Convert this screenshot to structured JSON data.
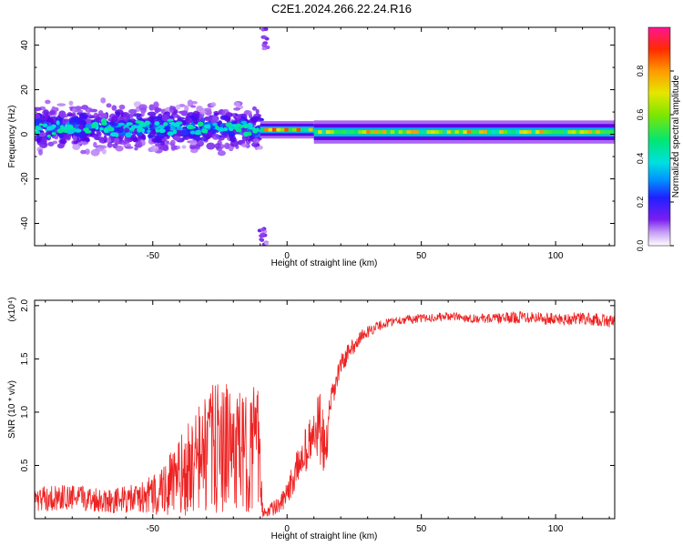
{
  "title": "C2E1.2024.266.22.24.R16",
  "chart_data": [
    {
      "type": "heatmap",
      "xlabel": "Height of straight line (km)",
      "ylabel": "Frequency (Hz)",
      "xlim": [
        -94,
        122
      ],
      "ylim": [
        -50,
        48
      ],
      "xticks": [
        -50,
        0,
        50,
        100
      ],
      "yticks": [
        -40,
        -20,
        0,
        20,
        40
      ],
      "colorbar": {
        "label": "Normalized spectral amplitude",
        "range": [
          0.0,
          1.0
        ],
        "ticks": [
          "0.0",
          "0.2",
          "0.4",
          "0.6",
          "0.8"
        ],
        "colormap": [
          "#ffffff",
          "#9f52f1",
          "#5a00e6",
          "#2020ff",
          "#0090ff",
          "#00e0e0",
          "#00e676",
          "#7fe600",
          "#e6e600",
          "#ff9a00",
          "#ff2a00",
          "#ff1493"
        ]
      },
      "bands": [
        {
          "x_range": [
            -94,
            -10
          ],
          "center_hz": 3,
          "spread_hz": 12,
          "peak_amplitude": 0.4,
          "texture": "scattered"
        },
        {
          "x_range": [
            -10,
            10
          ],
          "center_hz": 2,
          "spread_hz": 3,
          "peak_amplitude": 0.9,
          "texture": "narrow"
        },
        {
          "x_range": [
            10,
            122
          ],
          "center_hz": 1,
          "spread_hz": 4,
          "peak_amplitude": 0.85,
          "texture": "narrow"
        }
      ],
      "artifacts": [
        {
          "x": -8,
          "y_range": [
            38,
            48
          ]
        },
        {
          "x": -9,
          "y_range": [
            -50,
            -42
          ]
        }
      ]
    },
    {
      "type": "line",
      "xlabel": "Height of straight line (km)",
      "ylabel": "SNR (10 * v/v)",
      "ylabel_multiplier": "(x10⁴)",
      "xlim": [
        -94,
        122
      ],
      "ylim": [
        0,
        2.05
      ],
      "xticks": [
        -50,
        0,
        50,
        100
      ],
      "yticks": [
        "0.5",
        "1.0",
        "1.5",
        "2.0"
      ],
      "series": [
        {
          "color": "#ee2222",
          "x": [
            -94,
            -85,
            -75,
            -65,
            -55,
            -50,
            -45,
            -40,
            -35,
            -30,
            -25,
            -20,
            -15,
            -11,
            -9,
            -7,
            -3,
            0,
            3,
            6,
            9,
            12,
            14,
            17,
            20,
            24,
            28,
            33,
            40,
            50,
            60,
            70,
            80,
            90,
            100,
            110,
            122
          ],
          "y": [
            0.18,
            0.2,
            0.19,
            0.17,
            0.19,
            0.22,
            0.3,
            0.38,
            0.5,
            0.62,
            0.68,
            0.65,
            0.6,
            0.72,
            0.06,
            0.08,
            0.12,
            0.22,
            0.42,
            0.62,
            0.72,
            0.88,
            0.6,
            1.15,
            1.45,
            1.6,
            1.72,
            1.8,
            1.86,
            1.88,
            1.9,
            1.88,
            1.88,
            1.9,
            1.87,
            1.88,
            1.85
          ],
          "noise_amplitude": [
            0.12,
            0.12,
            0.12,
            0.12,
            0.14,
            0.2,
            0.28,
            0.38,
            0.48,
            0.6,
            0.62,
            0.58,
            0.55,
            0.6,
            0.05,
            0.06,
            0.08,
            0.12,
            0.16,
            0.2,
            0.25,
            0.35,
            0.3,
            0.14,
            0.1,
            0.08,
            0.06,
            0.05,
            0.04,
            0.04,
            0.04,
            0.04,
            0.05,
            0.06,
            0.06,
            0.06,
            0.06
          ]
        }
      ]
    }
  ]
}
